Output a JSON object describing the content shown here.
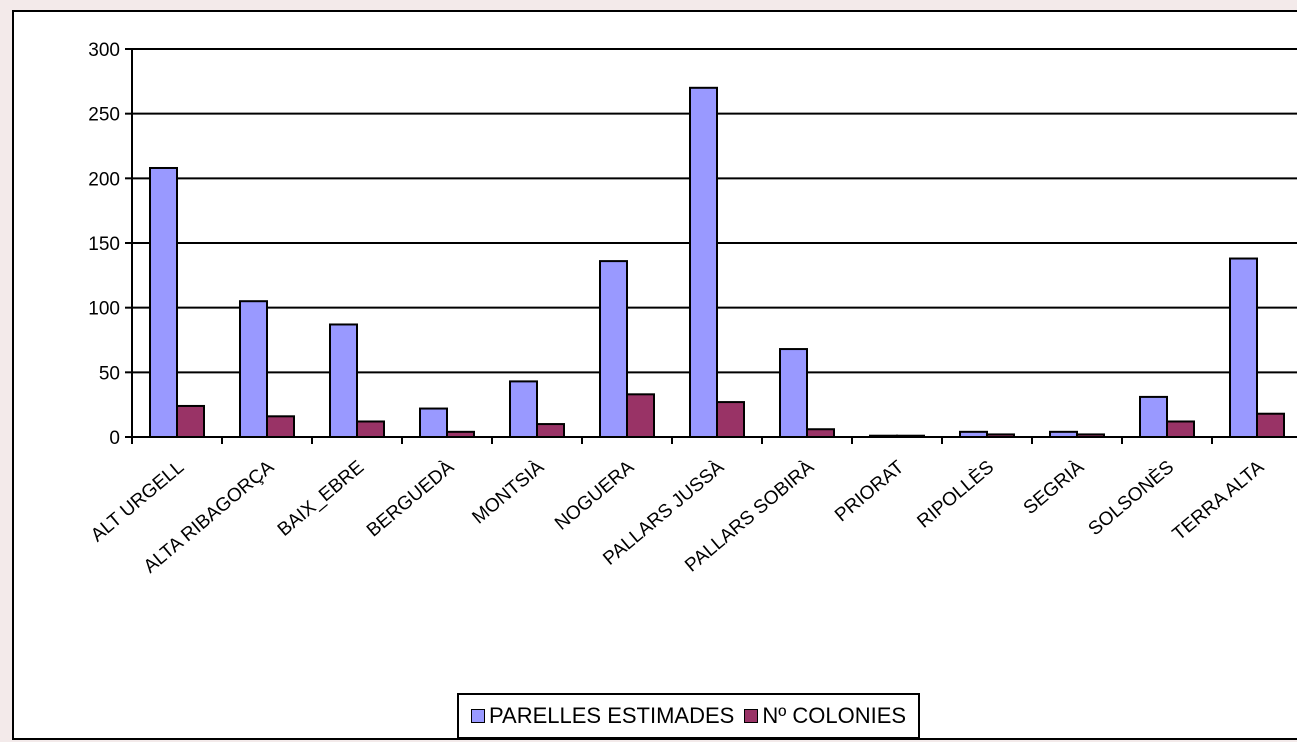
{
  "chart_data": {
    "type": "bar",
    "title": "",
    "xlabel": "",
    "ylabel": "",
    "ylim": [
      0,
      300
    ],
    "y_ticks": [
      0,
      50,
      100,
      150,
      200,
      250,
      300
    ],
    "grid": true,
    "legend_position": "bottom",
    "categories": [
      "ALT URGELL",
      "ALTA RIBAGORÇA",
      "BAIX_EBRE",
      "BERGUEDÀ",
      "MONTSIÀ",
      "NOGUERA",
      "PALLARS JUSSÀ",
      "PALLARS SOBIRÀ",
      "PRIORAT",
      "RIPOLLÈS",
      "SEGRIÀ",
      "SOLSONÈS",
      "TERRA ALTA"
    ],
    "series": [
      {
        "name": "PARELLES ESTIMADES",
        "color": "#9999ff",
        "values": [
          208,
          105,
          87,
          22,
          43,
          136,
          270,
          68,
          1,
          4,
          4,
          31,
          138
        ]
      },
      {
        "name": "Nº COLONIES",
        "color": "#993366",
        "values": [
          24,
          16,
          12,
          4,
          10,
          33,
          27,
          6,
          1,
          2,
          2,
          12,
          18
        ]
      }
    ]
  }
}
